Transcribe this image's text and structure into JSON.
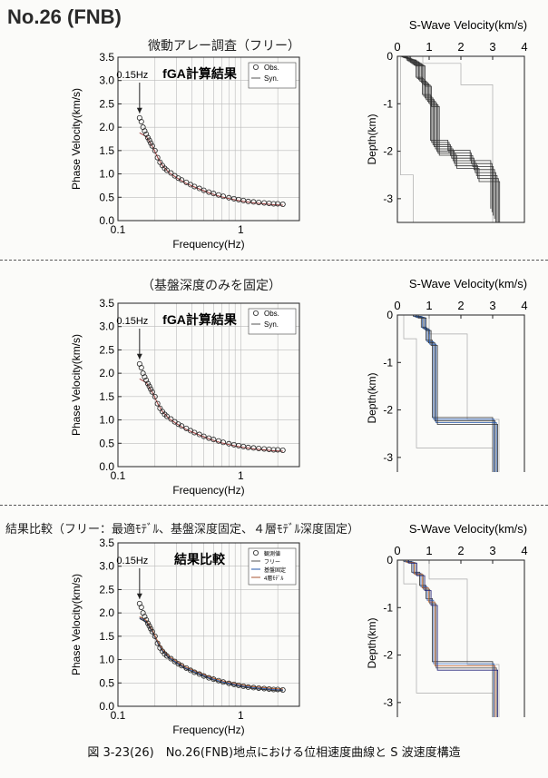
{
  "header": {
    "title": "No.26 (FNB)"
  },
  "sections": [
    {
      "title": "微動アレー調査（フリー）"
    },
    {
      "title": "（基盤深度のみを固定）"
    },
    {
      "title": "結果比較（フリー：最適ﾓﾃﾞﾙ、基盤深度固定、４層ﾓﾃﾞﾙ深度固定）"
    }
  ],
  "caption": "図 3-23(26)　No.26(FNB)地点における位相速度曲線と S 波速度構造",
  "chart_data": [
    {
      "type": "scatter",
      "title": "fGA計算結果",
      "annotation": "0.15Hz",
      "xlabel": "Frequency(Hz)",
      "ylabel": "Phase Velocity(km/s)",
      "x_scale": "log",
      "xlim": [
        0.1,
        3
      ],
      "ylim": [
        0,
        3.5
      ],
      "xticks": [
        "0.1",
        "1"
      ],
      "yticks": [
        "0.0",
        "0.5",
        "1.0",
        "1.5",
        "2.0",
        "2.5",
        "3.0",
        "3.5"
      ],
      "legend": [
        "Obs.",
        "Syn."
      ],
      "legend_position": "top-right",
      "grid": true,
      "obs_x": [
        0.15,
        0.155,
        0.16,
        0.165,
        0.17,
        0.175,
        0.18,
        0.185,
        0.19,
        0.2,
        0.21,
        0.22,
        0.23,
        0.24,
        0.25,
        0.27,
        0.29,
        0.31,
        0.33,
        0.36,
        0.39,
        0.42,
        0.46,
        0.5,
        0.55,
        0.6,
        0.66,
        0.72,
        0.8,
        0.88,
        0.96,
        1.05,
        1.15,
        1.27,
        1.4,
        1.55,
        1.7,
        1.85,
        2.0,
        2.2
      ],
      "obs_y": [
        2.2,
        2.12,
        2.0,
        1.92,
        1.85,
        1.78,
        1.72,
        1.66,
        1.6,
        1.5,
        1.35,
        1.25,
        1.18,
        1.12,
        1.08,
        1.02,
        0.96,
        0.91,
        0.87,
        0.82,
        0.77,
        0.73,
        0.69,
        0.65,
        0.61,
        0.58,
        0.55,
        0.52,
        0.49,
        0.47,
        0.45,
        0.43,
        0.41,
        0.4,
        0.39,
        0.38,
        0.37,
        0.36,
        0.36,
        0.35
      ],
      "syn_x": [
        0.15,
        0.17,
        0.19,
        0.21,
        0.23,
        0.26,
        0.3,
        0.35,
        0.42,
        0.5,
        0.6,
        0.72,
        0.88,
        1.05,
        1.27,
        1.55,
        1.85,
        2.2
      ],
      "syn_y": [
        1.9,
        1.82,
        1.62,
        1.38,
        1.2,
        1.05,
        0.94,
        0.83,
        0.74,
        0.66,
        0.58,
        0.52,
        0.47,
        0.43,
        0.4,
        0.38,
        0.36,
        0.35
      ]
    },
    {
      "type": "line",
      "title": "S-Wave Velocity(km/s)",
      "ylabel": "Depth(km)",
      "xlim": [
        0,
        4
      ],
      "ylim": [
        0,
        -3.5
      ],
      "xticks": [
        "0",
        "1",
        "2",
        "3",
        "4"
      ],
      "yticks": [
        "0",
        "-1",
        "-2",
        "-3"
      ],
      "grid": false,
      "best_model": {
        "vs": [
          0.3,
          0.45,
          0.75,
          0.95,
          1.2,
          1.75,
          2.45,
          3.1
        ],
        "depth": [
          0.05,
          0.15,
          0.55,
          0.95,
          1.95,
          2.2,
          2.45,
          3.5
        ]
      }
    },
    {
      "type": "scatter",
      "title": "fGA計算結果",
      "annotation": "0.15Hz",
      "xlabel": "Frequency(Hz)",
      "ylabel": "Phase Velocity(km/s)",
      "x_scale": "log",
      "xlim": [
        0.1,
        3
      ],
      "ylim": [
        0,
        3.5
      ],
      "xticks": [
        "0.1",
        "1"
      ],
      "yticks": [
        "0.0",
        "0.5",
        "1.0",
        "1.5",
        "2.0",
        "2.5",
        "3.0",
        "3.5"
      ],
      "legend": [
        "Obs.",
        "Syn."
      ],
      "legend_position": "top-right",
      "grid": true
    },
    {
      "type": "line",
      "title": "S-Wave Velocity(km/s)",
      "ylabel": "Depth(km)",
      "xlim": [
        0,
        4
      ],
      "ylim": [
        0,
        -3.5
      ],
      "xticks": [
        "0",
        "1",
        "2",
        "3",
        "4"
      ],
      "yticks": [
        "0",
        "-1",
        "-2",
        "-3"
      ],
      "grid": false,
      "best_model": {
        "vs": [
          0.6,
          0.85,
          1.0,
          1.2,
          3.1
        ],
        "depth": [
          0.05,
          0.3,
          0.6,
          2.25,
          3.5
        ]
      }
    },
    {
      "type": "scatter",
      "title": "結果比較",
      "annotation": "0.15Hz",
      "xlabel": "Frequency(Hz)",
      "ylabel": "Phase Velocity(km/s)",
      "x_scale": "log",
      "xlim": [
        0.1,
        3
      ],
      "ylim": [
        0,
        3.5
      ],
      "xticks": [
        "0.1",
        "1"
      ],
      "yticks": [
        "0.0",
        "0.5",
        "1.0",
        "1.5",
        "2.0",
        "2.5",
        "3.0",
        "3.5"
      ],
      "legend": [
        "観測値",
        "フリー",
        "基盤固定",
        "4層ﾓﾃﾞﾙ"
      ],
      "legend_position": "top-right",
      "grid": true
    },
    {
      "type": "line",
      "title": "S-Wave Velocity(km/s)",
      "ylabel": "Depth(km)",
      "xlim": [
        0,
        4
      ],
      "ylim": [
        0,
        -3.5
      ],
      "xticks": [
        "0",
        "1",
        "2",
        "3",
        "4"
      ],
      "yticks": [
        "0",
        "-1",
        "-2",
        "-3"
      ],
      "grid": false,
      "best_model": {
        "vs": [
          0.3,
          0.55,
          0.8,
          1.0,
          1.2,
          3.1
        ],
        "depth": [
          0.05,
          0.3,
          0.6,
          0.9,
          2.25,
          3.5
        ]
      }
    }
  ]
}
